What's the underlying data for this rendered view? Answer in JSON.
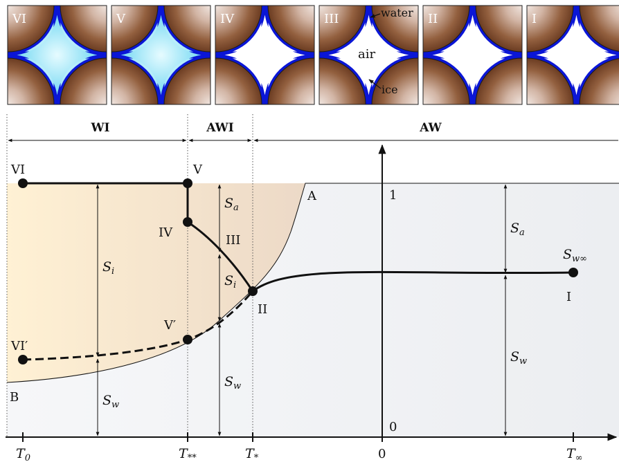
{
  "panels": [
    {
      "label": "VI",
      "state": "saturated-water"
    },
    {
      "label": "V",
      "state": "saturated-water"
    },
    {
      "label": "IV",
      "state": "ice-air-water"
    },
    {
      "label": "III",
      "state": "air-water-ice"
    },
    {
      "label": "II",
      "state": "air-water-small-ice"
    },
    {
      "label": "I",
      "state": "air-water"
    }
  ],
  "panel_annotations": {
    "water": "water",
    "air": "air",
    "ice": "ice"
  },
  "regions": {
    "wi": "WI",
    "awi": "AWI",
    "aw": "AW"
  },
  "points": {
    "vi": "VI",
    "v": "V",
    "iv": "IV",
    "iii": "III",
    "ii": "II",
    "i": "I",
    "vi_prime": "VI′",
    "v_prime": "V′",
    "a": "A",
    "b": "B"
  },
  "y_ticks": {
    "one": "1",
    "zero": "0"
  },
  "x_ticks": {
    "zero": "0"
  },
  "saturation_labels": {
    "s_letter": "S",
    "a_sub": "a",
    "i_sub": "i",
    "w_sub": "w",
    "w_inf_sub": "w∞"
  },
  "temperature_labels": {
    "t_letter": "T",
    "t0_sub": "0",
    "t_starstar_sub": "**",
    "t_star_sub": "*",
    "t_inf_sub": "∞"
  },
  "colors": {
    "grain_dark": "#6b3c22",
    "grain_light": "#e9dcd4",
    "water_blue": "#0b16d6",
    "ice_cyan": "#aeeefc",
    "ice_region_left": "#fdeccb",
    "ice_region_right": "#efdccb",
    "gray_region": "#f3f4f6"
  }
}
